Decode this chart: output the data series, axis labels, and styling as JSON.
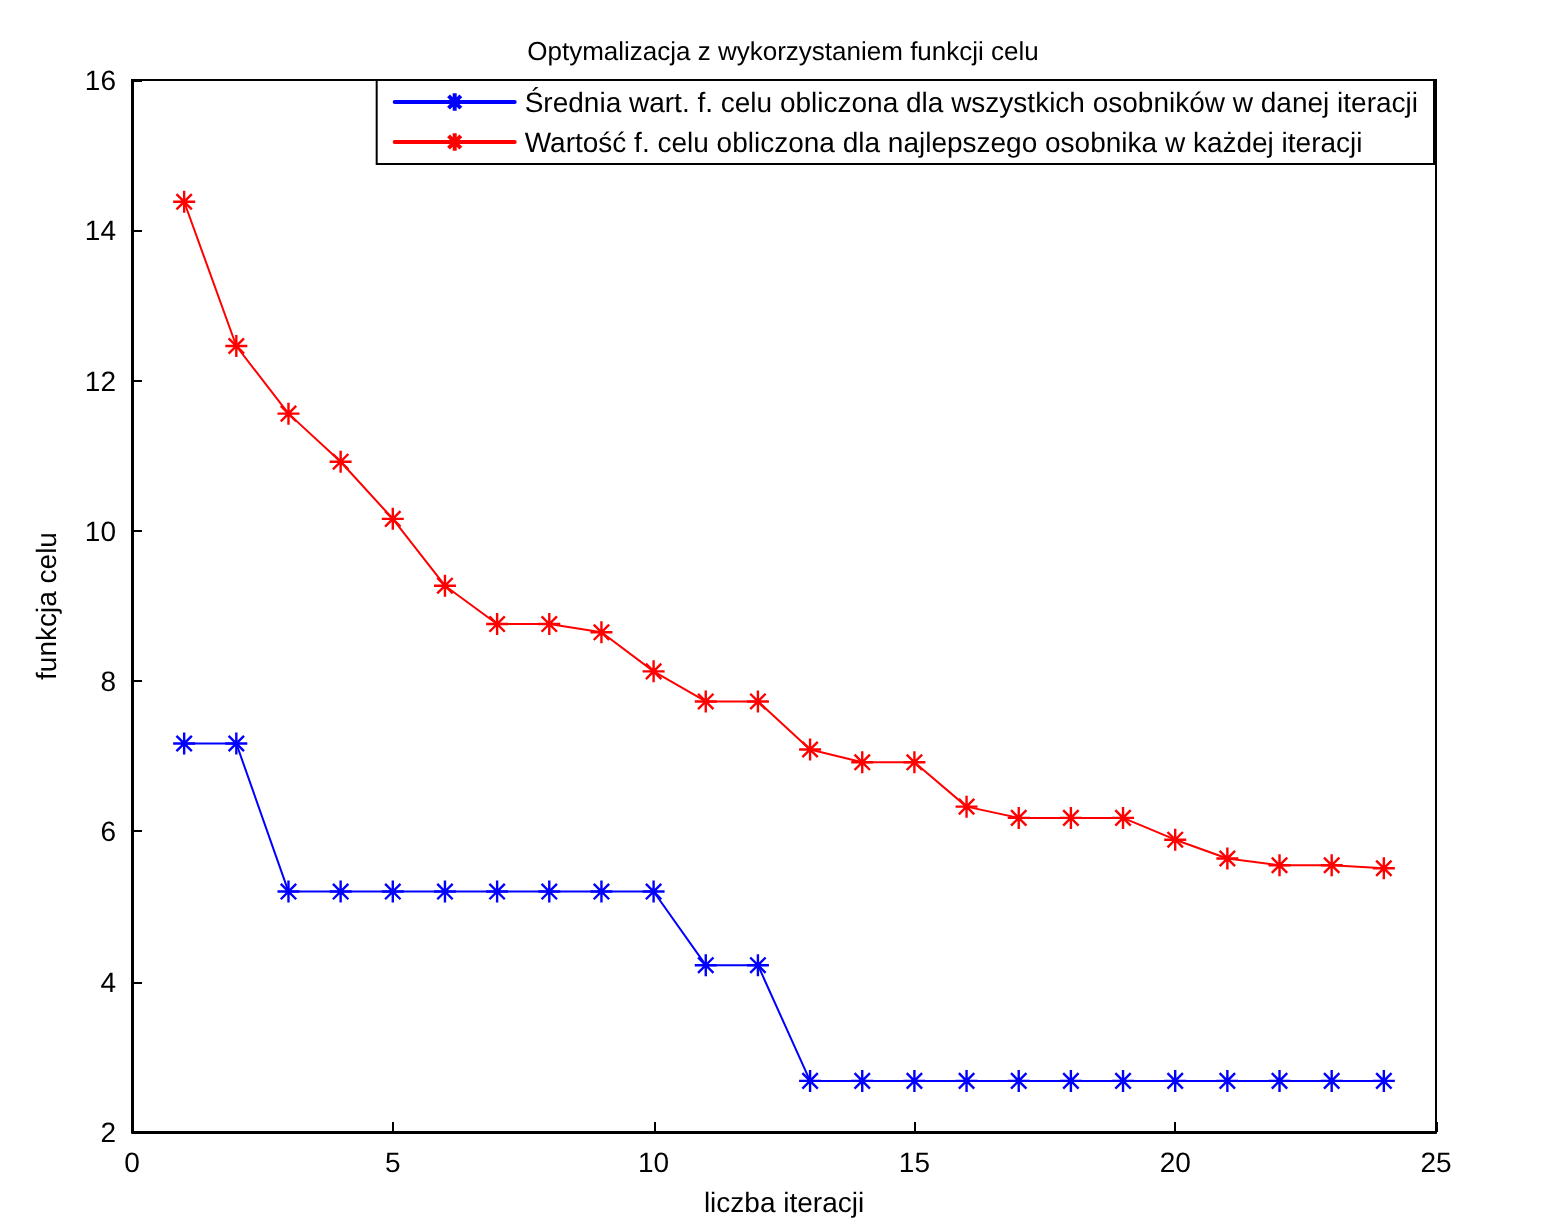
{
  "chart_data": {
    "type": "line",
    "title": "Optymalizacja z wykorzystaniem funkcji celu",
    "xlabel": "liczba iteracji",
    "ylabel": "funkcja celu",
    "x": [
      1,
      2,
      3,
      4,
      5,
      6,
      7,
      8,
      9,
      10,
      11,
      12,
      13,
      14,
      15,
      16,
      17,
      18,
      19,
      20,
      21,
      22,
      23,
      24
    ],
    "series": [
      {
        "name": "Średnia wart. f. celu obliczona dla wszystkich osobników w danej iteracji",
        "color": "#0000ff",
        "values": [
          7.17,
          7.17,
          5.2,
          5.2,
          5.2,
          5.2,
          5.2,
          5.2,
          5.2,
          5.2,
          4.22,
          4.22,
          2.68,
          2.68,
          2.68,
          2.68,
          2.68,
          2.68,
          2.68,
          2.68,
          2.68,
          2.68,
          2.68,
          2.68
        ]
      },
      {
        "name": "Wartość f. celu obliczona dla najlepszego osobnika w każdej iteracji",
        "color": "#ff0000",
        "values": [
          14.38,
          12.46,
          11.56,
          10.92,
          10.16,
          9.27,
          8.76,
          8.76,
          8.65,
          8.13,
          7.73,
          7.73,
          7.09,
          6.92,
          6.92,
          6.33,
          6.18,
          6.18,
          6.18,
          5.89,
          5.64,
          5.55,
          5.55,
          5.51
        ]
      }
    ],
    "xlim": [
      0,
      25
    ],
    "xticks": [
      0,
      5,
      10,
      15,
      20,
      25
    ],
    "ylim": [
      2,
      16
    ],
    "yticks": [
      2,
      4,
      6,
      8,
      10,
      12,
      14,
      16
    ],
    "grid": false,
    "legend": "top right",
    "marker": "cross",
    "line_style": "solid"
  }
}
